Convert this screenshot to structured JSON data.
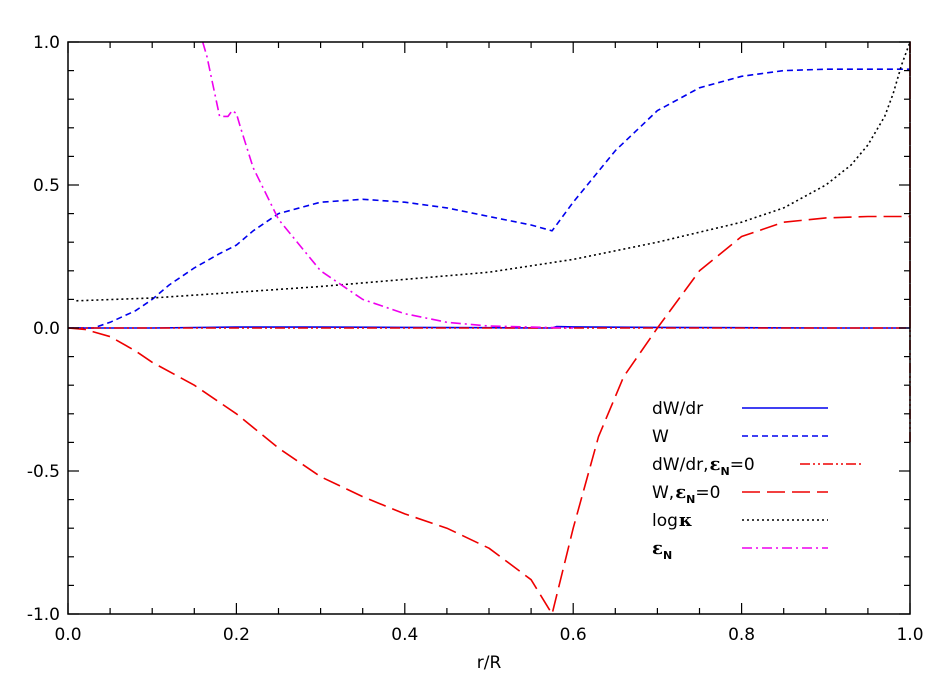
{
  "chart_data": {
    "type": "line",
    "xlabel": "r/R",
    "ylabel": "",
    "xlim": [
      0.0,
      1.0
    ],
    "ylim": [
      -1.0,
      1.0
    ],
    "xticks": [
      {
        "v": 0.0,
        "label": "0.0"
      },
      {
        "v": 0.2,
        "label": "0.2"
      },
      {
        "v": 0.4,
        "label": "0.4"
      },
      {
        "v": 0.6,
        "label": "0.6"
      },
      {
        "v": 0.8,
        "label": "0.8"
      },
      {
        "v": 1.0,
        "label": "1.0"
      }
    ],
    "yticks": [
      {
        "v": -1.0,
        "label": "-1.0"
      },
      {
        "v": -0.5,
        "label": "-0.5"
      },
      {
        "v": 0.0,
        "label": "0.0"
      },
      {
        "v": 0.5,
        "label": "0.5"
      },
      {
        "v": 1.0,
        "label": "1.0"
      }
    ],
    "x_minor_step": 0.05,
    "y_minor_step": 0.1,
    "grid": false,
    "legend_position": "lower-right",
    "legend": [
      {
        "label": "dW/dr",
        "color": "#0000ee",
        "style": "solid"
      },
      {
        "label": "W",
        "color": "#0000ee",
        "style": "dashed"
      },
      {
        "label": "dW/dr,",
        "greek": "ε",
        "sub": "N",
        "suffix": "=0",
        "color": "#ee0000",
        "style": "dash-dot-dot"
      },
      {
        "label": "W,",
        "greek": "ε",
        "sub": "N",
        "suffix": "=0",
        "color": "#ee0000",
        "style": "long-dash"
      },
      {
        "label": "log",
        "greek": "κ",
        "sub": "",
        "suffix": "",
        "color": "#000000",
        "style": "dotted"
      },
      {
        "label": "",
        "greek": "ε",
        "sub": "N",
        "suffix": "",
        "color": "#ee00ee",
        "style": "dash-dot"
      }
    ],
    "series": [
      {
        "key": "dWdr",
        "color": "#0000ee",
        "style": "solid",
        "x": [
          0.0,
          0.1,
          0.2,
          0.3,
          0.4,
          0.5,
          0.575,
          0.58,
          0.6,
          0.7,
          0.8,
          0.9,
          0.998,
          1.0
        ],
        "y": [
          0.0,
          0.0,
          0.003,
          0.003,
          0.002,
          0.001,
          0.0,
          0.005,
          0.004,
          0.002,
          0.001,
          0.0,
          0.0,
          0.0
        ]
      },
      {
        "key": "W",
        "color": "#0000ee",
        "style": "dashed",
        "x": [
          0.0,
          0.03,
          0.05,
          0.08,
          0.1,
          0.12,
          0.15,
          0.18,
          0.2,
          0.22,
          0.25,
          0.3,
          0.35,
          0.4,
          0.45,
          0.5,
          0.55,
          0.575,
          0.6,
          0.65,
          0.7,
          0.75,
          0.8,
          0.85,
          0.9,
          0.95,
          1.0
        ],
        "y": [
          0.0,
          0.0,
          0.02,
          0.06,
          0.1,
          0.15,
          0.21,
          0.26,
          0.29,
          0.34,
          0.4,
          0.44,
          0.45,
          0.44,
          0.42,
          0.39,
          0.36,
          0.34,
          0.44,
          0.62,
          0.76,
          0.84,
          0.88,
          0.9,
          0.905,
          0.905,
          0.905
        ]
      },
      {
        "key": "dWdr_eps0",
        "color": "#ee0000",
        "style": "dash-dot-dot",
        "x": [
          0.0,
          0.2,
          0.4,
          0.6,
          0.8,
          0.998,
          1.0,
          1.0,
          1.0
        ],
        "y": [
          0.0,
          0.0,
          0.0,
          0.0,
          0.0,
          0.0,
          0.0,
          1.0,
          -0.4
        ]
      },
      {
        "key": "W_eps0",
        "color": "#ee0000",
        "style": "long-dash",
        "x": [
          0.0,
          0.02,
          0.05,
          0.08,
          0.1,
          0.15,
          0.2,
          0.25,
          0.3,
          0.35,
          0.4,
          0.45,
          0.5,
          0.55,
          0.575,
          0.6,
          0.63,
          0.66,
          0.7,
          0.75,
          0.8,
          0.85,
          0.9,
          0.95,
          1.0
        ],
        "y": [
          0.0,
          -0.005,
          -0.03,
          -0.08,
          -0.12,
          -0.2,
          -0.3,
          -0.42,
          -0.52,
          -0.59,
          -0.65,
          -0.7,
          -0.77,
          -0.88,
          -1.0,
          -0.7,
          -0.38,
          -0.17,
          0.0,
          0.2,
          0.32,
          0.37,
          0.385,
          0.39,
          0.39
        ]
      },
      {
        "key": "logkappa",
        "color": "#000000",
        "style": "dotted",
        "x": [
          0.01,
          0.1,
          0.2,
          0.3,
          0.4,
          0.5,
          0.6,
          0.7,
          0.8,
          0.85,
          0.9,
          0.93,
          0.95,
          0.97,
          0.98,
          0.99,
          1.0
        ],
        "y": [
          0.095,
          0.105,
          0.125,
          0.145,
          0.17,
          0.195,
          0.24,
          0.3,
          0.37,
          0.42,
          0.5,
          0.57,
          0.64,
          0.74,
          0.82,
          0.92,
          1.0
        ]
      },
      {
        "key": "epsN",
        "color": "#ee00ee",
        "style": "dash-dot",
        "x": [
          0.16,
          0.165,
          0.17,
          0.18,
          0.19,
          0.195,
          0.2,
          0.205,
          0.22,
          0.25,
          0.3,
          0.35,
          0.4,
          0.45,
          0.5,
          0.55,
          0.6
        ],
        "y": [
          1.0,
          0.95,
          0.88,
          0.74,
          0.74,
          0.76,
          0.75,
          0.7,
          0.56,
          0.38,
          0.2,
          0.1,
          0.05,
          0.02,
          0.007,
          0.003,
          0.0
        ]
      }
    ]
  }
}
